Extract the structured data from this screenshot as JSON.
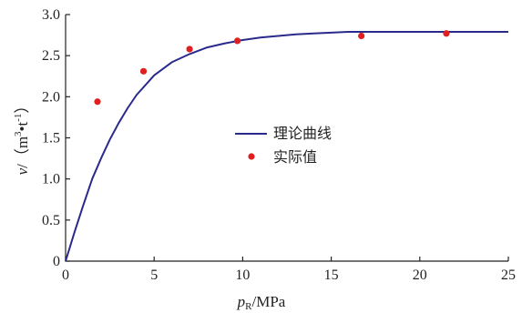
{
  "chart_data": {
    "type": "line",
    "title": "",
    "xlabel_var": "p",
    "xlabel_sub": "R",
    "xlabel_unit": "/MPa",
    "ylabel_var": "v",
    "ylabel_unit_open": "/（m",
    "ylabel_sup1": "3",
    "ylabel_bullet": "•",
    "ylabel_t": "t",
    "ylabel_sup2": "-1",
    "ylabel_close": "）",
    "xlim": [
      0,
      25
    ],
    "ylim": [
      0,
      3.0
    ],
    "x_ticks": [
      "0",
      "5",
      "10",
      "15",
      "20",
      "25"
    ],
    "y_ticks": [
      "0",
      "0.5",
      "1.0",
      "1.5",
      "2.0",
      "2.5",
      "3.0"
    ],
    "grid": false,
    "legend_position": "center-right",
    "series": [
      {
        "name": "理论曲线",
        "kind": "line",
        "color": "#2a2a8c",
        "x": [
          0,
          0.5,
          1,
          1.5,
          2,
          2.5,
          3,
          3.5,
          4,
          5,
          6,
          7,
          8,
          9,
          10,
          11,
          12,
          13,
          14,
          15,
          16,
          17,
          18,
          19,
          20,
          22,
          25
        ],
        "y": [
          0,
          0.35,
          0.68,
          1.0,
          1.25,
          1.48,
          1.68,
          1.86,
          2.02,
          2.26,
          2.42,
          2.52,
          2.6,
          2.65,
          2.69,
          2.72,
          2.74,
          2.76,
          2.77,
          2.78,
          2.79,
          2.79,
          2.79,
          2.79,
          2.79,
          2.79,
          2.79
        ]
      },
      {
        "name": "实际值",
        "kind": "scatter",
        "color": "#e02020",
        "x": [
          1.8,
          4.4,
          7.0,
          9.7,
          16.7,
          21.5
        ],
        "y": [
          1.94,
          2.31,
          2.58,
          2.68,
          2.74,
          2.77
        ]
      }
    ]
  }
}
